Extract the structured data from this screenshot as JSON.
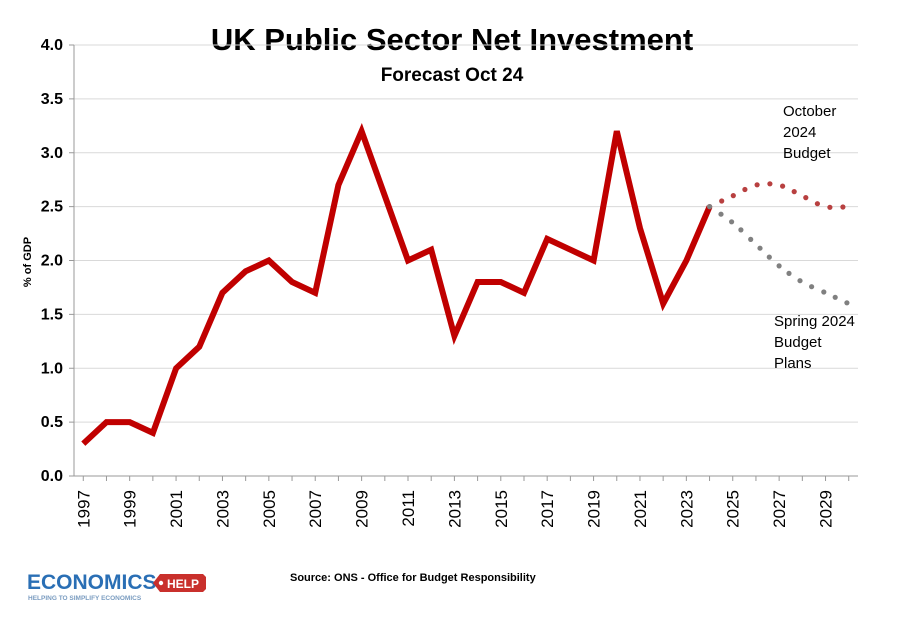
{
  "chart_data": {
    "type": "line",
    "title": "UK Public Sector Net Investment",
    "subtitle": "Forecast Oct 24",
    "ylabel": "% of GDP",
    "xlabel": "",
    "ylim": [
      0,
      4.0
    ],
    "xlim": [
      1997,
      2030
    ],
    "y_ticks": [
      "0.0",
      "0.5",
      "1.0",
      "1.5",
      "2.0",
      "2.5",
      "3.0",
      "3.5",
      "4.0"
    ],
    "x_ticks": [
      "1997",
      "1999",
      "2001",
      "2003",
      "2005",
      "2007",
      "2009",
      "2011",
      "2013",
      "2015",
      "2017",
      "2019",
      "2021",
      "2023",
      "2025",
      "2027",
      "2029"
    ],
    "grid": "horizontal",
    "series": [
      {
        "style": "solid",
        "color": "#c00000",
        "x": [
          1997,
          1998,
          1999,
          2000,
          2001,
          2002,
          2003,
          2004,
          2005,
          2006,
          2007,
          2008,
          2009,
          2010,
          2011,
          2012,
          2013,
          2014,
          2015,
          2016,
          2017,
          2018,
          2019,
          2020,
          2021,
          2022,
          2023,
          2024
        ],
        "values": [
          0.3,
          0.5,
          0.5,
          0.4,
          1.0,
          1.2,
          1.7,
          1.9,
          2.0,
          1.8,
          1.7,
          2.7,
          3.2,
          2.6,
          2.0,
          2.1,
          1.3,
          1.8,
          1.8,
          1.7,
          2.2,
          2.1,
          2.0,
          3.2,
          2.3,
          1.6,
          2.0,
          2.5
        ]
      },
      {
        "name": "October 2024 Budget",
        "style": "dotted",
        "color": "#b84040",
        "x": [
          2024,
          2025,
          2026,
          2027,
          2028,
          2029,
          2030
        ],
        "values": [
          2.5,
          2.6,
          2.7,
          2.7,
          2.6,
          2.5,
          2.5
        ]
      },
      {
        "name": "Spring 2024 Budget Plans",
        "style": "dotted",
        "color": "#808080",
        "x": [
          2024,
          2025,
          2026,
          2027,
          2028,
          2029,
          2030
        ],
        "values": [
          2.5,
          2.35,
          2.15,
          1.95,
          1.8,
          1.7,
          1.6
        ]
      }
    ],
    "annotations": [
      {
        "lines": [
          "October",
          "2024",
          "Budget"
        ],
        "color": "#000000"
      },
      {
        "lines": [
          "Spring 2024",
          "Budget",
          "Plans"
        ],
        "color": "#000000"
      }
    ],
    "source": "Source: ONS - Office for Budget Responsibility"
  },
  "logo": {
    "word": "ECONOMICS",
    "tag_word": "HELP",
    "tagline": "HELPING TO SIMPLIFY ECONOMICS",
    "colors": {
      "word": "#2a6fb5",
      "tag": "#c9302c"
    }
  }
}
